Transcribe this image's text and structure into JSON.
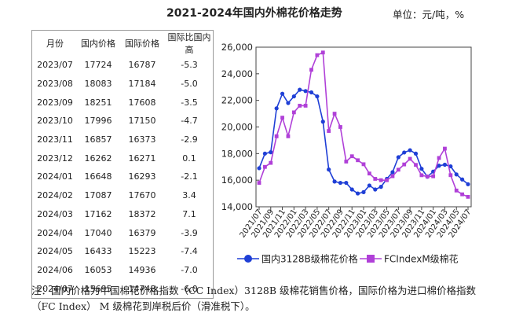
{
  "header": {
    "title": "2021-2024年国内外棉花价格走势",
    "unit": "单位：元/吨，%"
  },
  "table": {
    "columns": [
      "月份",
      "国内价格",
      "国际价格",
      "国际比国内高"
    ],
    "rows": [
      [
        "2023/07",
        "17724",
        "16787",
        "-5.3"
      ],
      [
        "2023/08",
        "18083",
        "17184",
        "-5.0"
      ],
      [
        "2023/09",
        "18251",
        "17608",
        "-3.5"
      ],
      [
        "2023/10",
        "17996",
        "17150",
        "-4.7"
      ],
      [
        "2023/11",
        "16857",
        "16373",
        "-2.9"
      ],
      [
        "2023/12",
        "16262",
        "16271",
        "0.1"
      ],
      [
        "2024/01",
        "16648",
        "16293",
        "-2.1"
      ],
      [
        "2024/02",
        "17087",
        "17670",
        "3.4"
      ],
      [
        "2024/03",
        "17162",
        "18372",
        "7.1"
      ],
      [
        "2024/04",
        "17040",
        "16379",
        "-3.9"
      ],
      [
        "2024/05",
        "16433",
        "15223",
        "-7.4"
      ],
      [
        "2024/06",
        "16053",
        "14936",
        "-7.0"
      ],
      [
        "2024/07",
        "15695",
        "14748",
        "-6.0"
      ]
    ]
  },
  "chart_data": {
    "type": "line",
    "ylim": [
      14000,
      26000
    ],
    "yticks": [
      "14,000",
      "16,000",
      "18,000",
      "20,000",
      "22,000",
      "24,000",
      "26,000"
    ],
    "xtick_labels": [
      "2021/07",
      "2021/09",
      "2021/11",
      "2022/01",
      "2022/03",
      "2022/05",
      "2022/07",
      "2022/09",
      "2022/11",
      "2023/01",
      "2023/03",
      "2023/05",
      "2023/07",
      "2023/09",
      "2023/11",
      "2024/01",
      "2024/03",
      "2024/05",
      "2024/07"
    ],
    "x": [
      "2021/07",
      "2021/08",
      "2021/09",
      "2021/10",
      "2021/11",
      "2021/12",
      "2022/01",
      "2022/02",
      "2022/03",
      "2022/04",
      "2022/05",
      "2022/06",
      "2022/07",
      "2022/08",
      "2022/09",
      "2022/10",
      "2022/11",
      "2022/12",
      "2023/01",
      "2023/02",
      "2023/03",
      "2023/04",
      "2023/05",
      "2023/06",
      "2023/07",
      "2023/08",
      "2023/09",
      "2023/10",
      "2023/11",
      "2023/12",
      "2024/01",
      "2024/02",
      "2024/03",
      "2024/04",
      "2024/05",
      "2024/06",
      "2024/07"
    ],
    "series": [
      {
        "name": "国内3128B级棉花价格",
        "color": "#1f3fd6",
        "marker": "circle",
        "values": [
          16900,
          18000,
          18100,
          21400,
          22500,
          21800,
          22300,
          22800,
          22700,
          22600,
          22300,
          20400,
          16800,
          15900,
          15800,
          15800,
          15300,
          15000,
          15100,
          15600,
          15300,
          15500,
          16100,
          16600,
          17724,
          18083,
          18251,
          17996,
          16857,
          16262,
          16648,
          17087,
          17162,
          17040,
          16433,
          16053,
          15695
        ]
      },
      {
        "name": "FCIndexM级棉花",
        "color": "#b040d8",
        "marker": "square",
        "values": [
          15800,
          17000,
          17300,
          19300,
          20700,
          19300,
          21100,
          21600,
          21600,
          24300,
          25400,
          25600,
          19700,
          21000,
          20000,
          17400,
          17800,
          17500,
          17200,
          16500,
          16100,
          16000,
          16000,
          16300,
          16787,
          17184,
          17608,
          17150,
          16373,
          16271,
          16293,
          17670,
          18372,
          16379,
          15223,
          14936,
          14748
        ]
      }
    ]
  },
  "note": {
    "text": "注：国内价格为中国棉花价格指数（CC Index）3128B 级棉花销售价格，国际价格为进口棉价格指数（FC Index） M 级棉花到岸税后价（滑准税下）。"
  }
}
